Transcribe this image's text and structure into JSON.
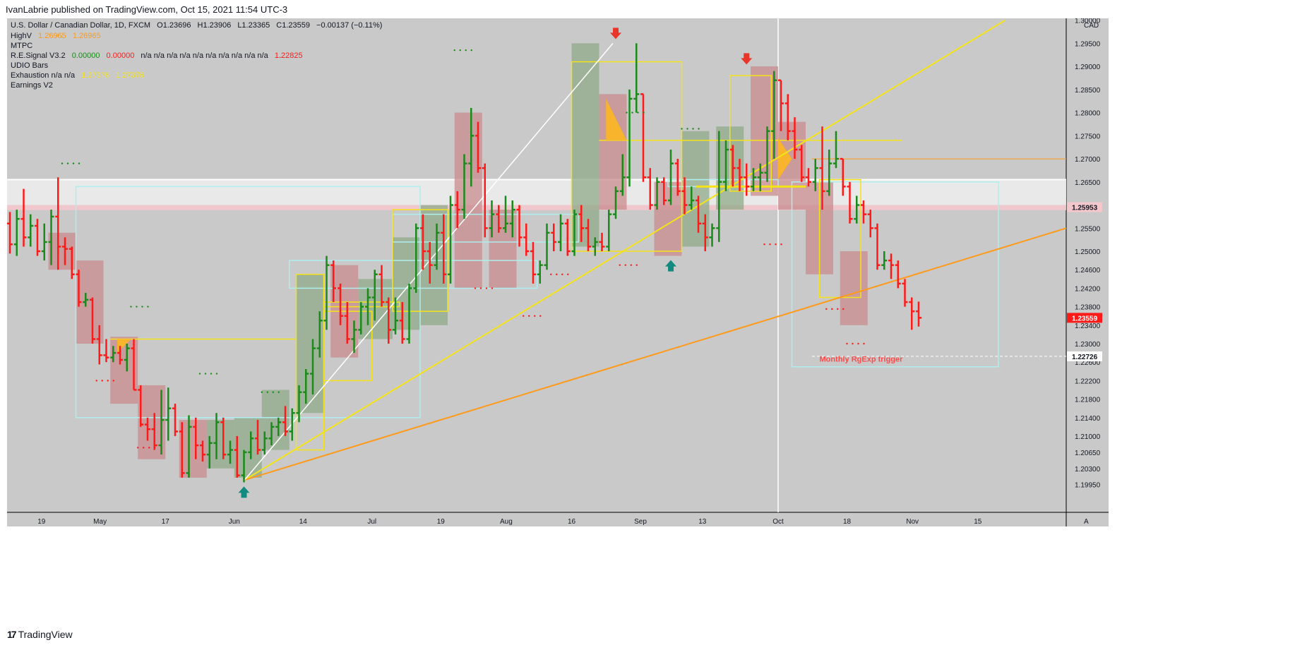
{
  "publisher_line": "IvanLabrie published on TradingView.com, Oct 15, 2021 11:54 UTC-3",
  "footer": {
    "brand": "TradingView",
    "logo_glyph": "17"
  },
  "colors": {
    "bg": "#c9c9c9",
    "bull": "#1b8a1b",
    "bear": "#ff1a1a",
    "neutral": "#000000",
    "yellow": "#f5e31a",
    "orange": "#ff9a1a",
    "cyan": "#aeeeee",
    "pink_zone": "#f3c7cc",
    "red_box": "#c88b8e",
    "green_box": "#8faa88"
  },
  "legend": {
    "line1": {
      "symbol": "U.S. Dollar / Canadian Dollar, 1D, FXCM",
      "o": "O1.23696",
      "h": "H1.23906",
      "l": "L1.23365",
      "c": "C1.23559",
      "chg": "−0.00137 (−0.11%)"
    },
    "line2": {
      "name": "HighV",
      "v1": "1.26965",
      "v2": "1.26965"
    },
    "line3": {
      "name": "MTPC"
    },
    "line4": {
      "name": "R.E.Signal V3.2",
      "g": "0.00000",
      "r": "0.00000",
      "na": "n/a  n/a  n/a  n/a  n/a  n/a  n/a  n/a  n/a  n/a",
      "v": "1.22825"
    },
    "line5": {
      "name": "UDIO Bars"
    },
    "line6": {
      "name": "Exhaustion  n/a  n/a",
      "v1": "1.27376",
      "v2": "1.27376"
    },
    "line7": {
      "name": "Earnings V2"
    }
  },
  "chart_data": {
    "type": "bar",
    "title": "U.S. Dollar / Canadian Dollar, 1D, FXCM",
    "ylabel": "CAD",
    "ylim": [
      1.1935,
      1.3004
    ],
    "y_ticks": [
      "1.19950",
      "1.20300",
      "1.20650",
      "1.21000",
      "1.21400",
      "1.21800",
      "1.22200",
      "1.22600",
      "1.23000",
      "1.23400",
      "1.23800",
      "1.24200",
      "1.24600",
      "1.25000",
      "1.25500",
      "1.26000",
      "1.26500",
      "1.27000",
      "1.27500",
      "1.28000",
      "1.28500",
      "1.29000",
      "1.29500",
      "1.30000"
    ],
    "x_labels": [
      {
        "label": "19",
        "i": 5
      },
      {
        "label": "May",
        "i": 13.5
      },
      {
        "label": "17",
        "i": 23
      },
      {
        "label": "Jun",
        "i": 33
      },
      {
        "label": "14",
        "i": 43
      },
      {
        "label": "Jul",
        "i": 53
      },
      {
        "label": "19",
        "i": 63
      },
      {
        "label": "Aug",
        "i": 72.5
      },
      {
        "label": "16",
        "i": 82
      },
      {
        "label": "Sep",
        "i": 92
      },
      {
        "label": "13",
        "i": 101
      },
      {
        "label": "Oct",
        "i": 112
      },
      {
        "label": "18",
        "i": 122
      },
      {
        "label": "Nov",
        "i": 131.5
      },
      {
        "label": "15",
        "i": 141
      }
    ],
    "price_labels": [
      {
        "value": "1.25953",
        "y": 1.25953,
        "bg": "#f3c7cc",
        "color": "#131722"
      },
      {
        "value": "1.23559",
        "y": 1.23559,
        "bg": "#ff1a1a",
        "color": "#ffffff"
      },
      {
        "value": "1.22726",
        "y": 1.22726,
        "bg": "#ffffff",
        "color": "#131722"
      }
    ],
    "annotations": [
      {
        "text": "Monthly RgExp trigger",
        "i": 118,
        "y": 1.2261
      }
    ],
    "ohlc": [
      [
        1.256,
        1.2585,
        1.2495,
        1.2515
      ],
      [
        1.2515,
        1.259,
        1.249,
        1.257
      ],
      [
        1.257,
        1.2635,
        1.251,
        1.253
      ],
      [
        1.253,
        1.258,
        1.251,
        1.2555
      ],
      [
        1.2555,
        1.257,
        1.249,
        1.25
      ],
      [
        1.25,
        1.256,
        1.248,
        1.252
      ],
      [
        1.252,
        1.259,
        1.247,
        1.2575
      ],
      [
        1.2575,
        1.266,
        1.246,
        1.251
      ],
      [
        1.251,
        1.253,
        1.247,
        1.2505
      ],
      [
        1.2505,
        1.251,
        1.244,
        1.245
      ],
      [
        1.245,
        1.246,
        1.238,
        1.239
      ],
      [
        1.239,
        1.241,
        1.238,
        1.2395
      ],
      [
        1.2395,
        1.24,
        1.23,
        1.231
      ],
      [
        1.231,
        1.234,
        1.2255,
        1.2275
      ],
      [
        1.2275,
        1.231,
        1.226,
        1.227
      ],
      [
        1.227,
        1.2295,
        1.226,
        1.228
      ],
      [
        1.228,
        1.2295,
        1.2255,
        1.2265
      ],
      [
        1.2265,
        1.23,
        1.224,
        1.229
      ],
      [
        1.229,
        1.231,
        1.22,
        1.22
      ],
      [
        1.22,
        1.221,
        1.212,
        1.2125
      ],
      [
        1.2125,
        1.214,
        1.209,
        1.2115
      ],
      [
        1.2115,
        1.215,
        1.207,
        1.208
      ],
      [
        1.208,
        1.22,
        1.206,
        1.2135
      ],
      [
        1.2135,
        1.2205,
        1.209,
        1.216
      ],
      [
        1.216,
        1.217,
        1.21,
        1.211
      ],
      [
        1.211,
        1.213,
        1.201,
        1.202
      ],
      [
        1.202,
        1.2145,
        1.201,
        1.212
      ],
      [
        1.212,
        1.214,
        1.205,
        1.208
      ],
      [
        1.208,
        1.209,
        1.2045,
        1.206
      ],
      [
        1.206,
        1.21,
        1.203,
        1.2085
      ],
      [
        1.2085,
        1.215,
        1.205,
        1.213
      ],
      [
        1.213,
        1.214,
        1.205,
        1.206
      ],
      [
        1.206,
        1.209,
        1.204,
        1.207
      ],
      [
        1.207,
        1.21,
        1.201,
        1.2015
      ],
      [
        1.2015,
        1.207,
        1.2,
        1.2065
      ],
      [
        1.2065,
        1.211,
        1.205,
        1.2095
      ],
      [
        1.2095,
        1.2135,
        1.206,
        1.207
      ],
      [
        1.207,
        1.211,
        1.206,
        1.2095
      ],
      [
        1.2095,
        1.213,
        1.208,
        1.212
      ],
      [
        1.212,
        1.214,
        1.21,
        1.213
      ],
      [
        1.213,
        1.2165,
        1.21,
        1.211
      ],
      [
        1.211,
        1.216,
        1.209,
        1.215
      ],
      [
        1.215,
        1.221,
        1.213,
        1.2195
      ],
      [
        1.2195,
        1.2245,
        1.217,
        1.2235
      ],
      [
        1.2235,
        1.231,
        1.219,
        1.229
      ],
      [
        1.229,
        1.237,
        1.227,
        1.235
      ],
      [
        1.235,
        1.249,
        1.233,
        1.247
      ],
      [
        1.247,
        1.248,
        1.239,
        1.242
      ],
      [
        1.242,
        1.243,
        1.234,
        1.236
      ],
      [
        1.236,
        1.239,
        1.23,
        1.231
      ],
      [
        1.231,
        1.235,
        1.228,
        1.233
      ],
      [
        1.233,
        1.239,
        1.232,
        1.238
      ],
      [
        1.238,
        1.242,
        1.234,
        1.24
      ],
      [
        1.24,
        1.246,
        1.235,
        1.245
      ],
      [
        1.245,
        1.247,
        1.238,
        1.239
      ],
      [
        1.239,
        1.24,
        1.23,
        1.233
      ],
      [
        1.233,
        1.24,
        1.232,
        1.235
      ],
      [
        1.235,
        1.239,
        1.23,
        1.231
      ],
      [
        1.231,
        1.243,
        1.23,
        1.242
      ],
      [
        1.242,
        1.256,
        1.241,
        1.255
      ],
      [
        1.255,
        1.258,
        1.246,
        1.25
      ],
      [
        1.25,
        1.252,
        1.243,
        1.247
      ],
      [
        1.247,
        1.256,
        1.246,
        1.254
      ],
      [
        1.254,
        1.258,
        1.243,
        1.245
      ],
      [
        1.245,
        1.262,
        1.243,
        1.26
      ],
      [
        1.26,
        1.263,
        1.255,
        1.259
      ],
      [
        1.259,
        1.271,
        1.257,
        1.269
      ],
      [
        1.269,
        1.281,
        1.264,
        1.275
      ],
      [
        1.275,
        1.278,
        1.267,
        1.268
      ],
      [
        1.268,
        1.269,
        1.253,
        1.255
      ],
      [
        1.255,
        1.261,
        1.253,
        1.258
      ],
      [
        1.258,
        1.26,
        1.254,
        1.255
      ],
      [
        1.255,
        1.262,
        1.254,
        1.256
      ],
      [
        1.256,
        1.261,
        1.253,
        1.259
      ],
      [
        1.259,
        1.26,
        1.251,
        1.253
      ],
      [
        1.253,
        1.256,
        1.249,
        1.25
      ],
      [
        1.25,
        1.252,
        1.243,
        1.245
      ],
      [
        1.245,
        1.248,
        1.243,
        1.247
      ],
      [
        1.247,
        1.256,
        1.246,
        1.254
      ],
      [
        1.254,
        1.256,
        1.25,
        1.252
      ],
      [
        1.252,
        1.258,
        1.25,
        1.256
      ],
      [
        1.256,
        1.257,
        1.249,
        1.25
      ],
      [
        1.25,
        1.259,
        1.249,
        1.258
      ],
      [
        1.258,
        1.26,
        1.252,
        1.255
      ],
      [
        1.255,
        1.257,
        1.25,
        1.251
      ],
      [
        1.251,
        1.253,
        1.249,
        1.252
      ],
      [
        1.252,
        1.254,
        1.25,
        1.251
      ],
      [
        1.251,
        1.259,
        1.25,
        1.258
      ],
      [
        1.258,
        1.264,
        1.257,
        1.263
      ],
      [
        1.263,
        1.271,
        1.262,
        1.266
      ],
      [
        1.266,
        1.285,
        1.264,
        1.283
      ],
      [
        1.283,
        1.295,
        1.28,
        1.284
      ],
      [
        1.284,
        1.284,
        1.265,
        1.266
      ],
      [
        1.266,
        1.268,
        1.259,
        1.26
      ],
      [
        1.26,
        1.266,
        1.259,
        1.265
      ],
      [
        1.265,
        1.266,
        1.26,
        1.261
      ],
      [
        1.261,
        1.272,
        1.26,
        1.269
      ],
      [
        1.269,
        1.27,
        1.262,
        1.263
      ],
      [
        1.263,
        1.266,
        1.258,
        1.26
      ],
      [
        1.26,
        1.264,
        1.259,
        1.261
      ],
      [
        1.261,
        1.262,
        1.254,
        1.256
      ],
      [
        1.256,
        1.258,
        1.25,
        1.253
      ],
      [
        1.253,
        1.256,
        1.251,
        1.255
      ],
      [
        1.255,
        1.276,
        1.252,
        1.265
      ],
      [
        1.265,
        1.274,
        1.263,
        1.272
      ],
      [
        1.272,
        1.273,
        1.264,
        1.268
      ],
      [
        1.268,
        1.27,
        1.263,
        1.266
      ],
      [
        1.266,
        1.269,
        1.262,
        1.264
      ],
      [
        1.264,
        1.268,
        1.263,
        1.266
      ],
      [
        1.266,
        1.269,
        1.263,
        1.267
      ],
      [
        1.267,
        1.277,
        1.265,
        1.276
      ],
      [
        1.276,
        1.289,
        1.27,
        1.287
      ],
      [
        1.287,
        1.287,
        1.276,
        1.282
      ],
      [
        1.282,
        1.284,
        1.274,
        1.276
      ],
      [
        1.276,
        1.279,
        1.27,
        1.272
      ],
      [
        1.272,
        1.273,
        1.265,
        1.266
      ],
      [
        1.266,
        1.268,
        1.264,
        1.265
      ],
      [
        1.265,
        1.27,
        1.263,
        1.268
      ],
      [
        1.268,
        1.277,
        1.259,
        1.263
      ],
      [
        1.263,
        1.272,
        1.262,
        1.269
      ],
      [
        1.269,
        1.276,
        1.268,
        1.27
      ],
      [
        1.27,
        1.27,
        1.262,
        1.264
      ],
      [
        1.264,
        1.265,
        1.256,
        1.257
      ],
      [
        1.257,
        1.262,
        1.256,
        1.26
      ],
      [
        1.26,
        1.261,
        1.256,
        1.258
      ],
      [
        1.258,
        1.259,
        1.253,
        1.255
      ],
      [
        1.255,
        1.256,
        1.246,
        1.247
      ],
      [
        1.247,
        1.25,
        1.246,
        1.248
      ],
      [
        1.248,
        1.2495,
        1.244,
        1.247
      ],
      [
        1.247,
        1.248,
        1.242,
        1.243
      ],
      [
        1.243,
        1.244,
        1.238,
        1.239
      ],
      [
        1.239,
        1.24,
        1.233,
        1.237
      ],
      [
        1.237,
        1.2391,
        1.2337,
        1.2356
      ]
    ],
    "ohlc_note": "[open, high, low, close] per daily bar, estimated from the chart"
  }
}
